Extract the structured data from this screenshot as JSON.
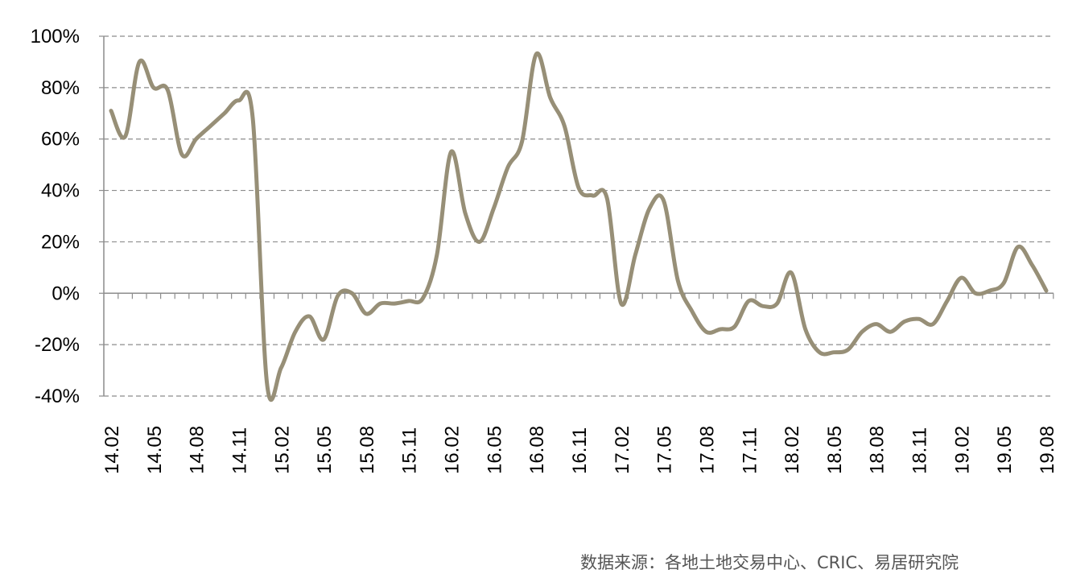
{
  "chart_data": {
    "type": "line",
    "title": "",
    "xlabel": "",
    "ylabel": "",
    "ylim": [
      -40,
      100
    ],
    "y_ticks": [
      "100%",
      "80%",
      "60%",
      "40%",
      "20%",
      "0%",
      "-20%",
      "-40%"
    ],
    "y_tick_values": [
      100,
      80,
      60,
      40,
      20,
      0,
      -20,
      -40
    ],
    "x_tick_labels": [
      "14.02",
      "14.05",
      "14.08",
      "14.11",
      "15.02",
      "15.05",
      "15.08",
      "15.11",
      "16.02",
      "16.05",
      "16.08",
      "16.11",
      "17.02",
      "17.05",
      "17.08",
      "17.11",
      "18.02",
      "18.05",
      "18.08",
      "18.11",
      "19.02",
      "19.05",
      "19.08"
    ],
    "grid": "horizontal dashed",
    "line_color": "#978F77",
    "series": [
      {
        "values": [
          71,
          61,
          90,
          80,
          79,
          54,
          60,
          65,
          70,
          75,
          68,
          -35,
          -29,
          -15,
          -9,
          -18,
          -1,
          0,
          -8,
          -4,
          -4,
          -3,
          -2,
          15,
          55,
          31,
          20,
          33,
          49,
          59,
          93,
          76,
          65,
          41,
          38,
          37,
          -4,
          15,
          33,
          36,
          5,
          -7,
          -15,
          -14,
          -13,
          -3,
          -5,
          -4,
          8,
          -14,
          -23,
          -23,
          -22,
          -15,
          -12,
          -15,
          -11,
          -10,
          -12,
          -3,
          6,
          0,
          1,
          4,
          18,
          11,
          1
        ]
      }
    ]
  },
  "source_note": "数据来源：各地土地交易中心、CRIC、易居研究院"
}
